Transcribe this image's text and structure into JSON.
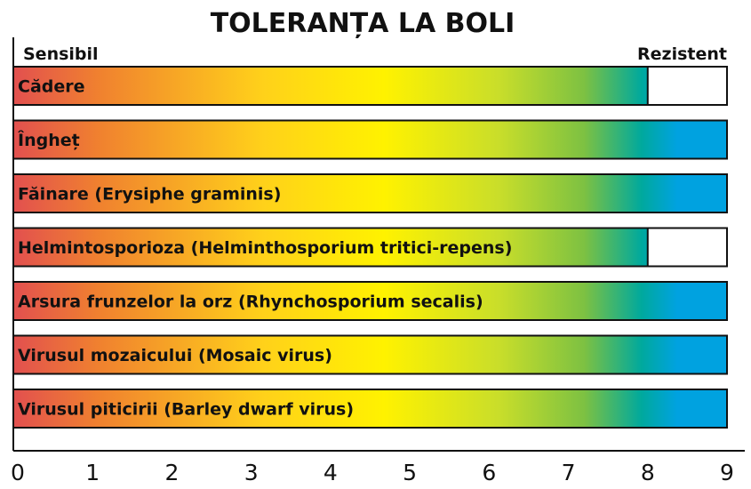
{
  "chart_data": {
    "type": "bar",
    "orientation": "horizontal",
    "title": "TOLERANȚA LA BOLI",
    "scale_left_label": "Sensibil",
    "scale_right_label": "Rezistent",
    "categories": [
      "Cădere",
      "Îngheț",
      "Făinare (Erysiphe graminis)",
      "Helmintosporioza (Helminthosporium tritici-repens)",
      "Arsura frunzelor la orz (Rhynchosporium secalis)",
      "Virusul mozaicului (Mosaic virus)",
      "Virusul piticirii (Barley dwarf virus)"
    ],
    "values": [
      8,
      9,
      9,
      8,
      9,
      9,
      9
    ],
    "xlim": [
      0,
      9
    ],
    "xticks": [
      "0",
      "1",
      "2",
      "3",
      "4",
      "5",
      "6",
      "7",
      "8",
      "9"
    ],
    "grid": false,
    "colors": {
      "gradient": [
        "#e2504f",
        "#f0812f",
        "#ffd11a",
        "#fff200",
        "#c9de2a",
        "#7dc142",
        "#00a99d",
        "#00a2e0"
      ],
      "bar_outline": "#111111",
      "axis": "#111111"
    }
  }
}
